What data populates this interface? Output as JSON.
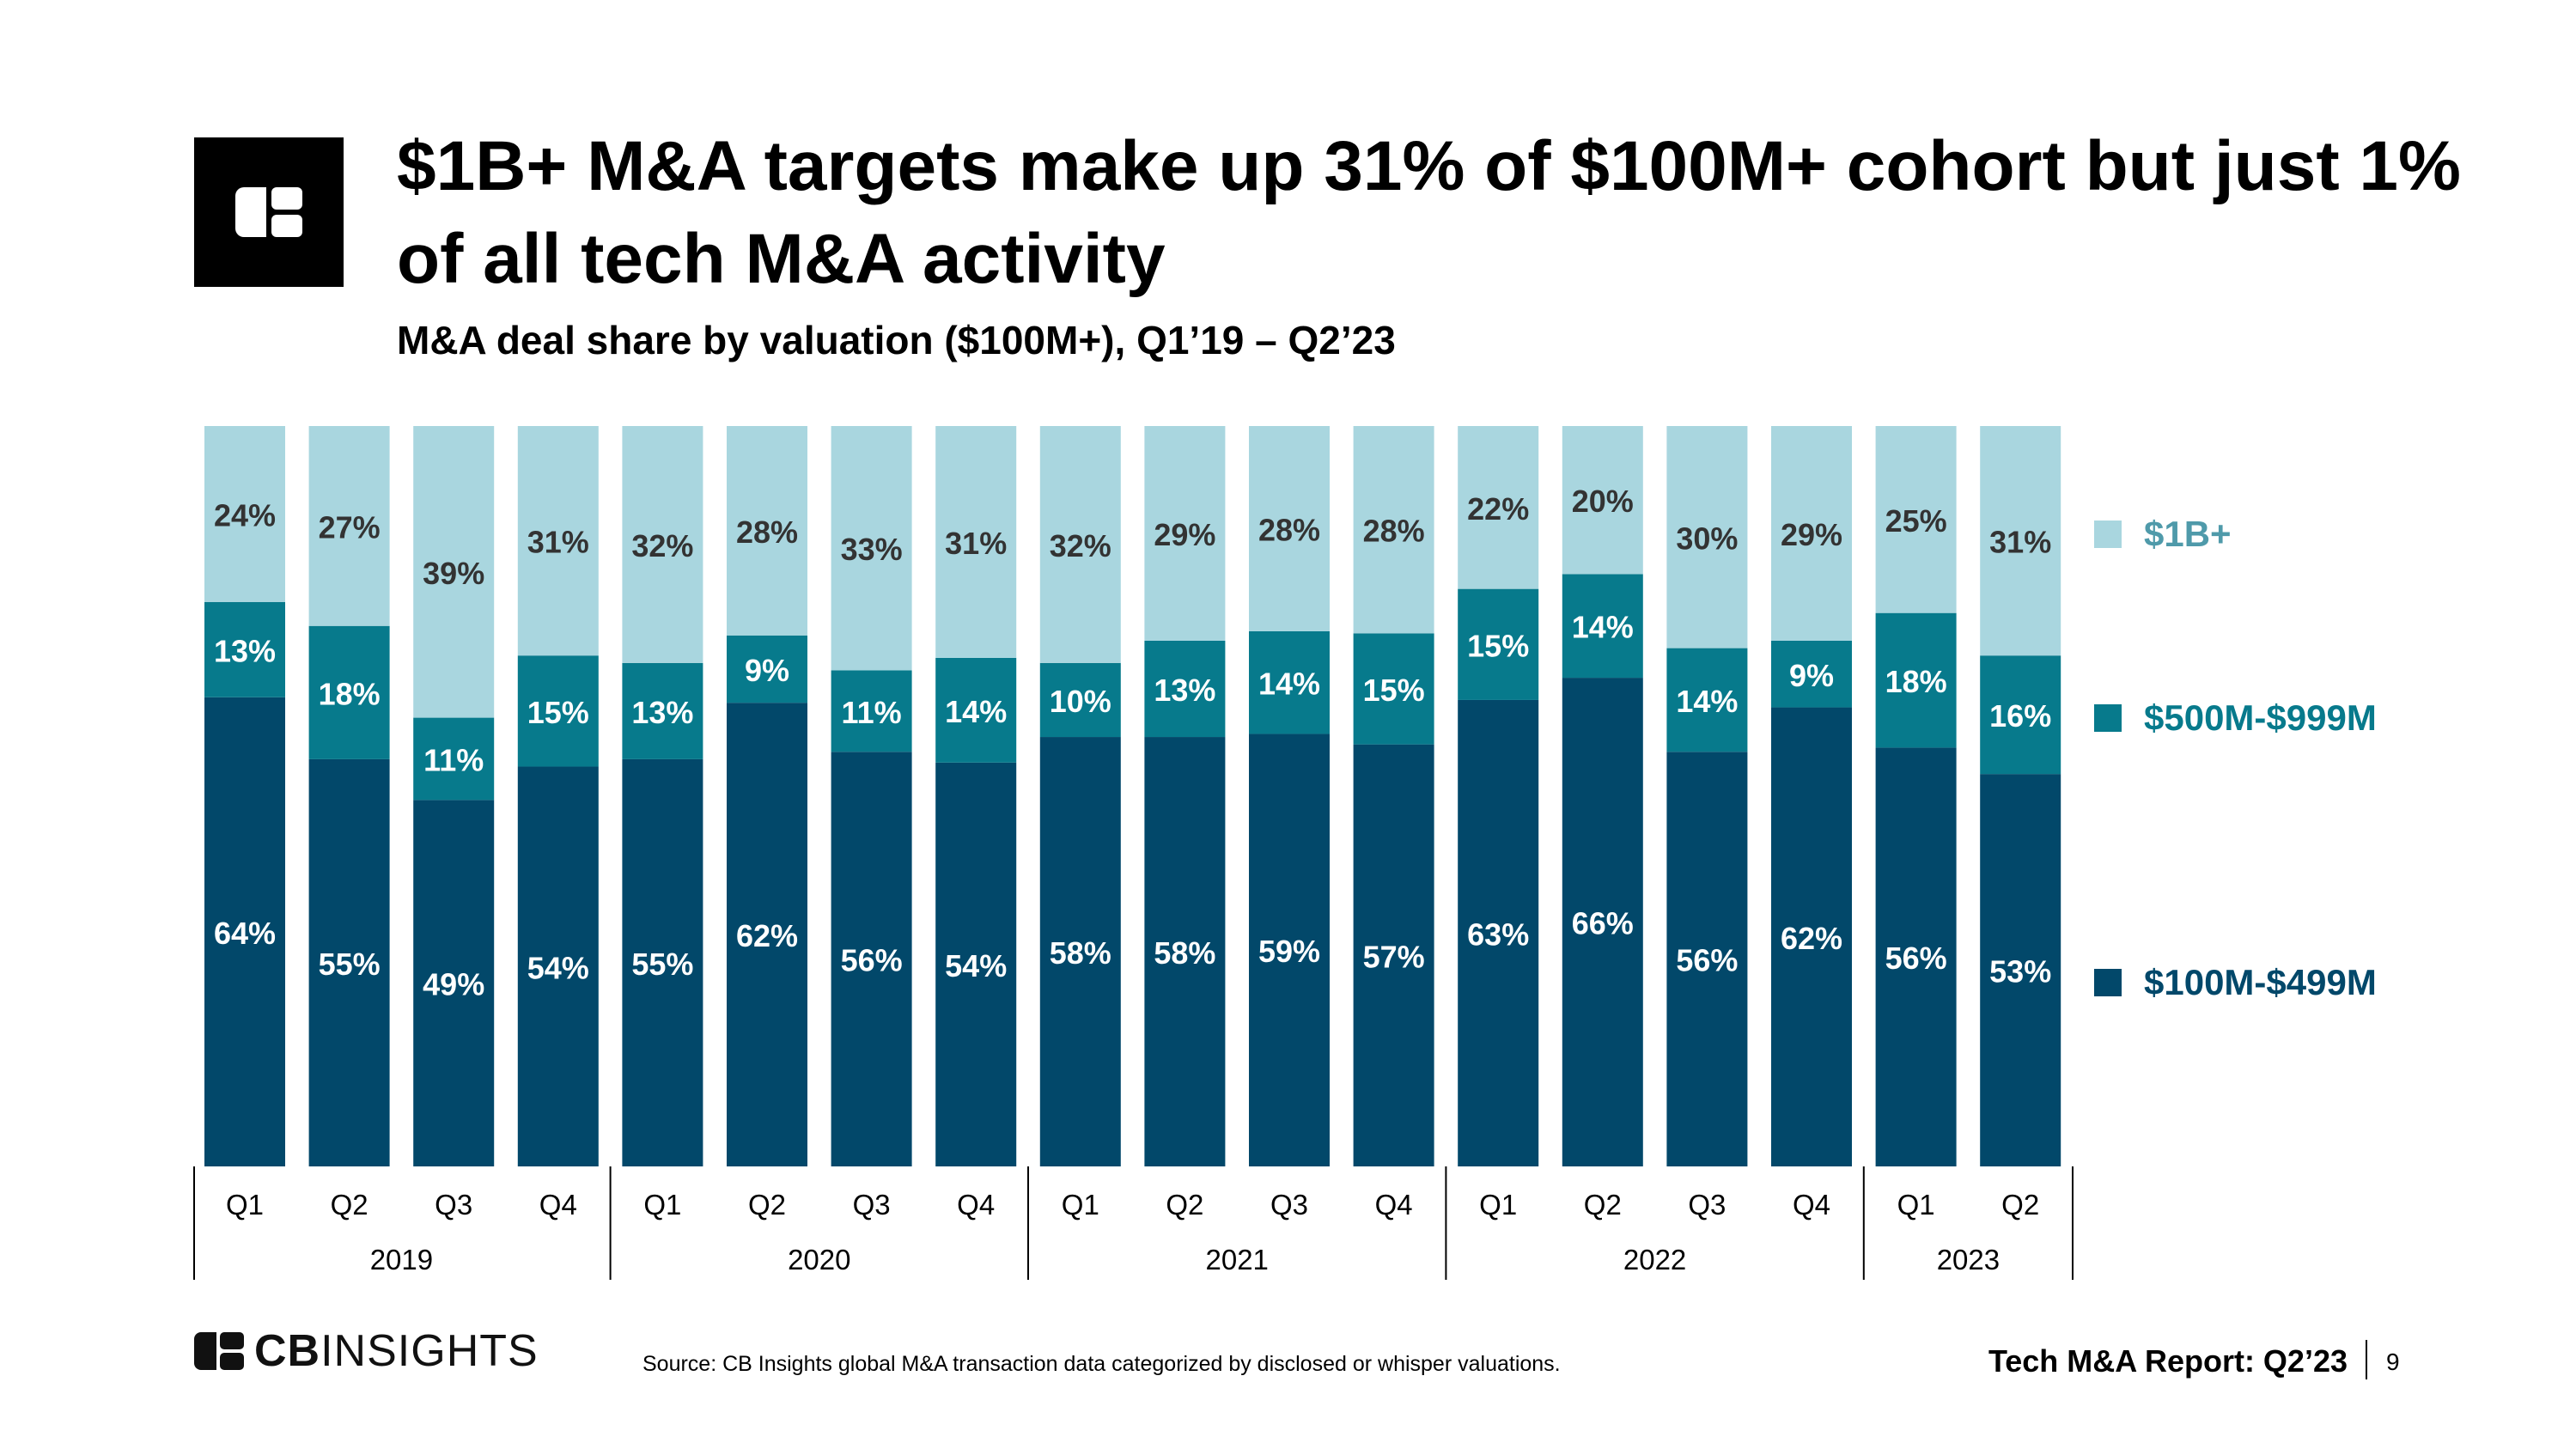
{
  "title": "$1B+ M&A targets make up 31% of $100M+ cohort but just 1% of all tech M&A activity",
  "subtitle": "M&A deal share by valuation ($100M+), Q1’19 – Q2’23",
  "footer": {
    "brand_bold": "CB",
    "brand_light": "INSIGHTS",
    "source": "Source: CB Insights global M&A transaction data categorized by disclosed or whisper valuations.",
    "report": "Tech M&A Report: Q2’23",
    "page": "9"
  },
  "icons": {
    "header_logo": "cb-logo-icon",
    "footer_logo": "cb-logo-icon"
  },
  "colors": {
    "dark": "#02486a",
    "mid": "#077a8c",
    "light": "#a9d6df",
    "label_dark": "#333333",
    "legend_light": "#4f9aaa"
  },
  "chart_data": {
    "type": "bar",
    "stacked": true,
    "categories": [
      "Q1",
      "Q2",
      "Q3",
      "Q4",
      "Q1",
      "Q2",
      "Q3",
      "Q4",
      "Q1",
      "Q2",
      "Q3",
      "Q4",
      "Q1",
      "Q2",
      "Q3",
      "Q4",
      "Q1",
      "Q2"
    ],
    "years": [
      {
        "label": "2019",
        "count": 4
      },
      {
        "label": "2020",
        "count": 4
      },
      {
        "label": "2021",
        "count": 4
      },
      {
        "label": "2022",
        "count": 4
      },
      {
        "label": "2023",
        "count": 2
      }
    ],
    "series": [
      {
        "name": "$100M-$499M",
        "color": "#02486a",
        "values": [
          64,
          55,
          49,
          54,
          55,
          62,
          56,
          54,
          58,
          58,
          59,
          57,
          63,
          66,
          56,
          62,
          56,
          53
        ]
      },
      {
        "name": "$500M-$999M",
        "color": "#077a8c",
        "values": [
          13,
          18,
          11,
          15,
          13,
          9,
          11,
          14,
          10,
          13,
          14,
          15,
          15,
          14,
          14,
          9,
          18,
          16
        ]
      },
      {
        "name": "$1B+",
        "color": "#a9d6df",
        "values": [
          24,
          27,
          39,
          31,
          32,
          28,
          33,
          31,
          32,
          29,
          28,
          28,
          22,
          20,
          30,
          29,
          25,
          31
        ]
      }
    ],
    "value_suffix": "%",
    "legend": [
      "$1B+",
      "$500M-$999M",
      "$100M-$499M"
    ],
    "legend_position": "right",
    "grid": false
  }
}
